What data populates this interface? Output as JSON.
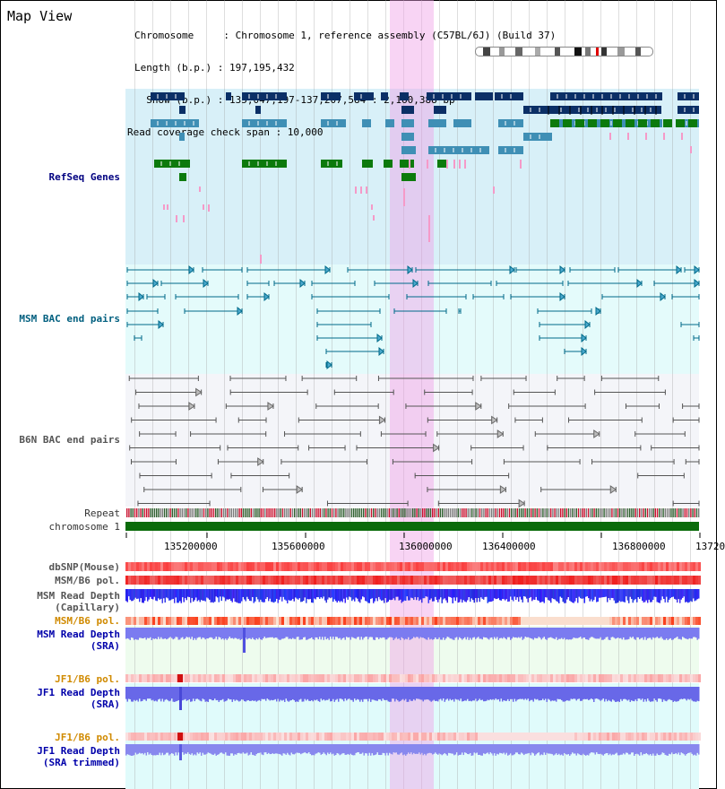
{
  "header": {
    "view_title": "Map View",
    "info_lines": [
      "Chromosome     : Chromosome 1, reference assembly (C57BL/6J) (Build 37)",
      "Length (b.p.) : 197,195,432",
      "  Show (b.p.) : 135,047,197-137,207,584 : 2,160,388 bp",
      "Read coverage check span : 10,000"
    ]
  },
  "tracks": {
    "refseq": "RefSeq Genes",
    "msm_bac": "MSM BAC end pairs",
    "b6n_bac": "B6N BAC end pairs",
    "repeat": "Repeat",
    "chromosome": "chromosome 1",
    "dbsnp": "dbSNP(Mouse)",
    "msm_b6_pol_1": "MSM/B6 pol.",
    "msm_depth_cap": "MSM Read Depth\n(Capillary)",
    "msm_b6_pol_2": "MSM/B6 pol.",
    "msm_depth_sra": "MSM Read Depth\n(SRA)",
    "jf1_b6_pol_1": "JF1/B6 pol.",
    "jf1_depth_sra": "JF1 Read Depth\n(SRA)",
    "jf1_b6_pol_2": "JF1/B6 pol.",
    "jf1_depth_trim": "JF1 Read Depth\n(SRA trimmed)"
  },
  "axis": {
    "ticks": [
      "135200000",
      "135600000",
      "136000000",
      "136400000",
      "136800000",
      "13720"
    ]
  },
  "colors": {
    "refseq_bg": "#d8f0f8",
    "msm_bg": "#e4fbfb",
    "b6n_bg": "#f2f4f8",
    "gene_navy": "#0b2f66",
    "gene_steel": "#3f8fb5",
    "gene_green": "#0c7a0c",
    "gene_pink": "#f59ac8",
    "bac_teal": "#006a8a",
    "bac_gray": "#555555",
    "chrom_green": "#0a6b0a",
    "highlight": "#f3b4ea"
  }
}
